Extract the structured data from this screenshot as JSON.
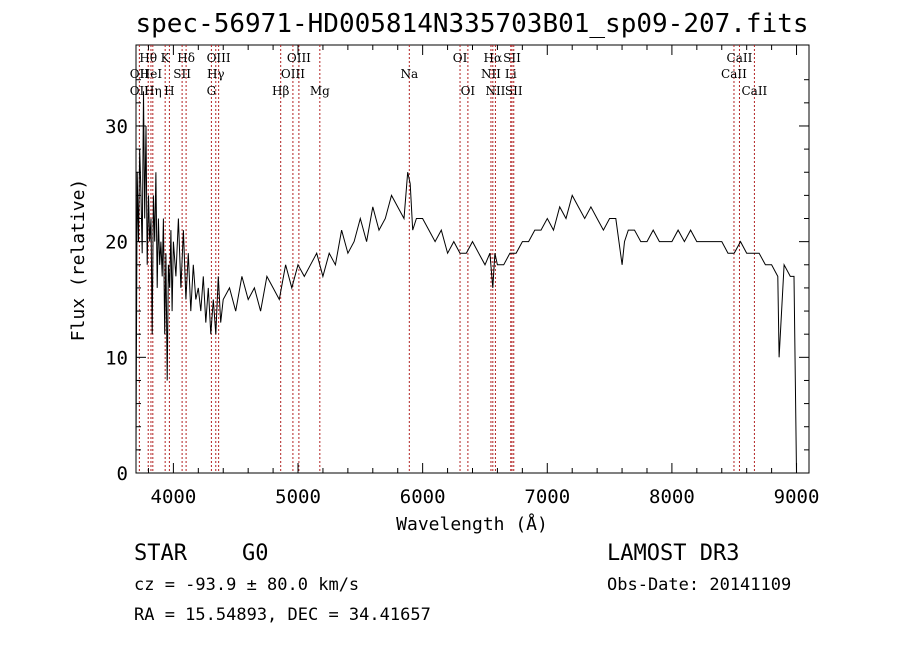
{
  "chart_data": {
    "type": "line",
    "title": "spec-56971-HD005814N335703B01_sp09-207.fits",
    "xlabel": "Wavelength (Å)",
    "ylabel": "Flux (relative)",
    "xlim": [
      3700,
      9100
    ],
    "ylim": [
      0,
      37
    ],
    "xticks": [
      4000,
      5000,
      6000,
      7000,
      8000,
      9000
    ],
    "yticks": [
      0,
      10,
      20,
      30
    ],
    "grid": false,
    "line_color": "#000000",
    "marker_color": "#b22222",
    "series": [
      {
        "x": [
          3700,
          3710,
          3720,
          3730,
          3740,
          3750,
          3760,
          3770,
          3780,
          3790,
          3800,
          3810,
          3820,
          3830,
          3840,
          3850,
          3860,
          3870,
          3880,
          3890,
          3900,
          3910,
          3920,
          3930,
          3940,
          3950,
          3960,
          3970,
          3980,
          3990,
          4000,
          4020,
          4040,
          4060,
          4080,
          4100,
          4120,
          4140,
          4160,
          4180,
          4200,
          4220,
          4240,
          4260,
          4280,
          4300,
          4320,
          4340,
          4360,
          4380,
          4400,
          4450,
          4500,
          4550,
          4600,
          4650,
          4700,
          4750,
          4800,
          4850,
          4900,
          4950,
          5000,
          5050,
          5100,
          5150,
          5200,
          5250,
          5300,
          5350,
          5400,
          5450,
          5500,
          5550,
          5600,
          5650,
          5700,
          5750,
          5800,
          5850,
          5880,
          5900,
          5920,
          5950,
          6000,
          6050,
          6100,
          6150,
          6200,
          6250,
          6300,
          6350,
          6400,
          6450,
          6500,
          6540,
          6563,
          6580,
          6600,
          6650,
          6700,
          6750,
          6800,
          6850,
          6900,
          6950,
          7000,
          7050,
          7100,
          7150,
          7200,
          7250,
          7300,
          7350,
          7400,
          7450,
          7500,
          7550,
          7600,
          7620,
          7650,
          7700,
          7750,
          7800,
          7850,
          7900,
          7950,
          8000,
          8050,
          8100,
          8150,
          8200,
          8250,
          8300,
          8350,
          8400,
          8450,
          8500,
          8550,
          8600,
          8650,
          8700,
          8750,
          8800,
          8850,
          8860,
          8900,
          8950,
          8980,
          9000
        ],
        "values": [
          2,
          26,
          20,
          28,
          24,
          19,
          33,
          22,
          30,
          18,
          24,
          20,
          22,
          12,
          24,
          20,
          26,
          16,
          22,
          18,
          20,
          17,
          22,
          12,
          19,
          8,
          18,
          16,
          21,
          14,
          20,
          17,
          22,
          16,
          21,
          15,
          19,
          14,
          18,
          15,
          16,
          14,
          17,
          13,
          16,
          12,
          15,
          12,
          17,
          13,
          15,
          16,
          14,
          17,
          15,
          16,
          14,
          17,
          16,
          15,
          18,
          16,
          18,
          17,
          18,
          19,
          17,
          19,
          18,
          21,
          19,
          20,
          22,
          20,
          23,
          21,
          22,
          24,
          23,
          22,
          26,
          25,
          21,
          22,
          22,
          21,
          20,
          21,
          19,
          20,
          19,
          19,
          20,
          19,
          18,
          19,
          16,
          19,
          18,
          18,
          19,
          19,
          20,
          20,
          21,
          21,
          22,
          21,
          23,
          22,
          24,
          23,
          22,
          23,
          22,
          21,
          22,
          22,
          18,
          20,
          21,
          21,
          20,
          20,
          21,
          20,
          20,
          20,
          21,
          20,
          21,
          20,
          20,
          20,
          20,
          20,
          19,
          19,
          20,
          19,
          19,
          19,
          18,
          18,
          17,
          10,
          18,
          17,
          17,
          0
        ]
      }
    ],
    "spectral_lines": [
      {
        "label": "Hθ",
        "x": 3798,
        "row": 0
      },
      {
        "label": "OII",
        "x": 3727,
        "row": 1
      },
      {
        "label": "HeI",
        "x": 3820,
        "row": 1
      },
      {
        "label": "OII",
        "x": 3727,
        "row": 2
      },
      {
        "label": "Hη",
        "x": 3835,
        "row": 2
      },
      {
        "label": "K",
        "x": 3934,
        "row": 0
      },
      {
        "label": "SII",
        "x": 4070,
        "row": 1
      },
      {
        "label": "H",
        "x": 3968,
        "row": 2
      },
      {
        "label": "Hδ",
        "x": 4102,
        "row": 0
      },
      {
        "label": "OIII",
        "x": 4363,
        "row": 0
      },
      {
        "label": "Hγ",
        "x": 4340,
        "row": 1
      },
      {
        "label": "G",
        "x": 4305,
        "row": 2
      },
      {
        "label": "Hβ",
        "x": 4861,
        "row": 2
      },
      {
        "label": "OIII",
        "x": 5007,
        "row": 0
      },
      {
        "label": "OIII",
        "x": 4959,
        "row": 1
      },
      {
        "label": "Mg",
        "x": 5175,
        "row": 2
      },
      {
        "label": "Na",
        "x": 5893,
        "row": 1
      },
      {
        "label": "OI",
        "x": 6300,
        "row": 0
      },
      {
        "label": "OI",
        "x": 6363,
        "row": 2
      },
      {
        "label": "Hα",
        "x": 6563,
        "row": 0
      },
      {
        "label": "NII",
        "x": 6548,
        "row": 1
      },
      {
        "label": "NII",
        "x": 6584,
        "row": 2
      },
      {
        "label": "SII",
        "x": 6717,
        "row": 0
      },
      {
        "label": "Li",
        "x": 6707,
        "row": 1
      },
      {
        "label": "SII",
        "x": 6731,
        "row": 2
      },
      {
        "label": "CaII",
        "x": 8542,
        "row": 0
      },
      {
        "label": "CaII",
        "x": 8498,
        "row": 1
      },
      {
        "label": "CaII",
        "x": 8662,
        "row": 2
      }
    ]
  },
  "info": {
    "object_class": "STAR",
    "subclass": "G0",
    "survey": "LAMOST DR3",
    "redshift_line": "cz = -93.9 ± 80.0 km/s",
    "obs_date": "Obs-Date: 20141109",
    "coords": "RA =  15.54893, DEC =  34.41657"
  }
}
